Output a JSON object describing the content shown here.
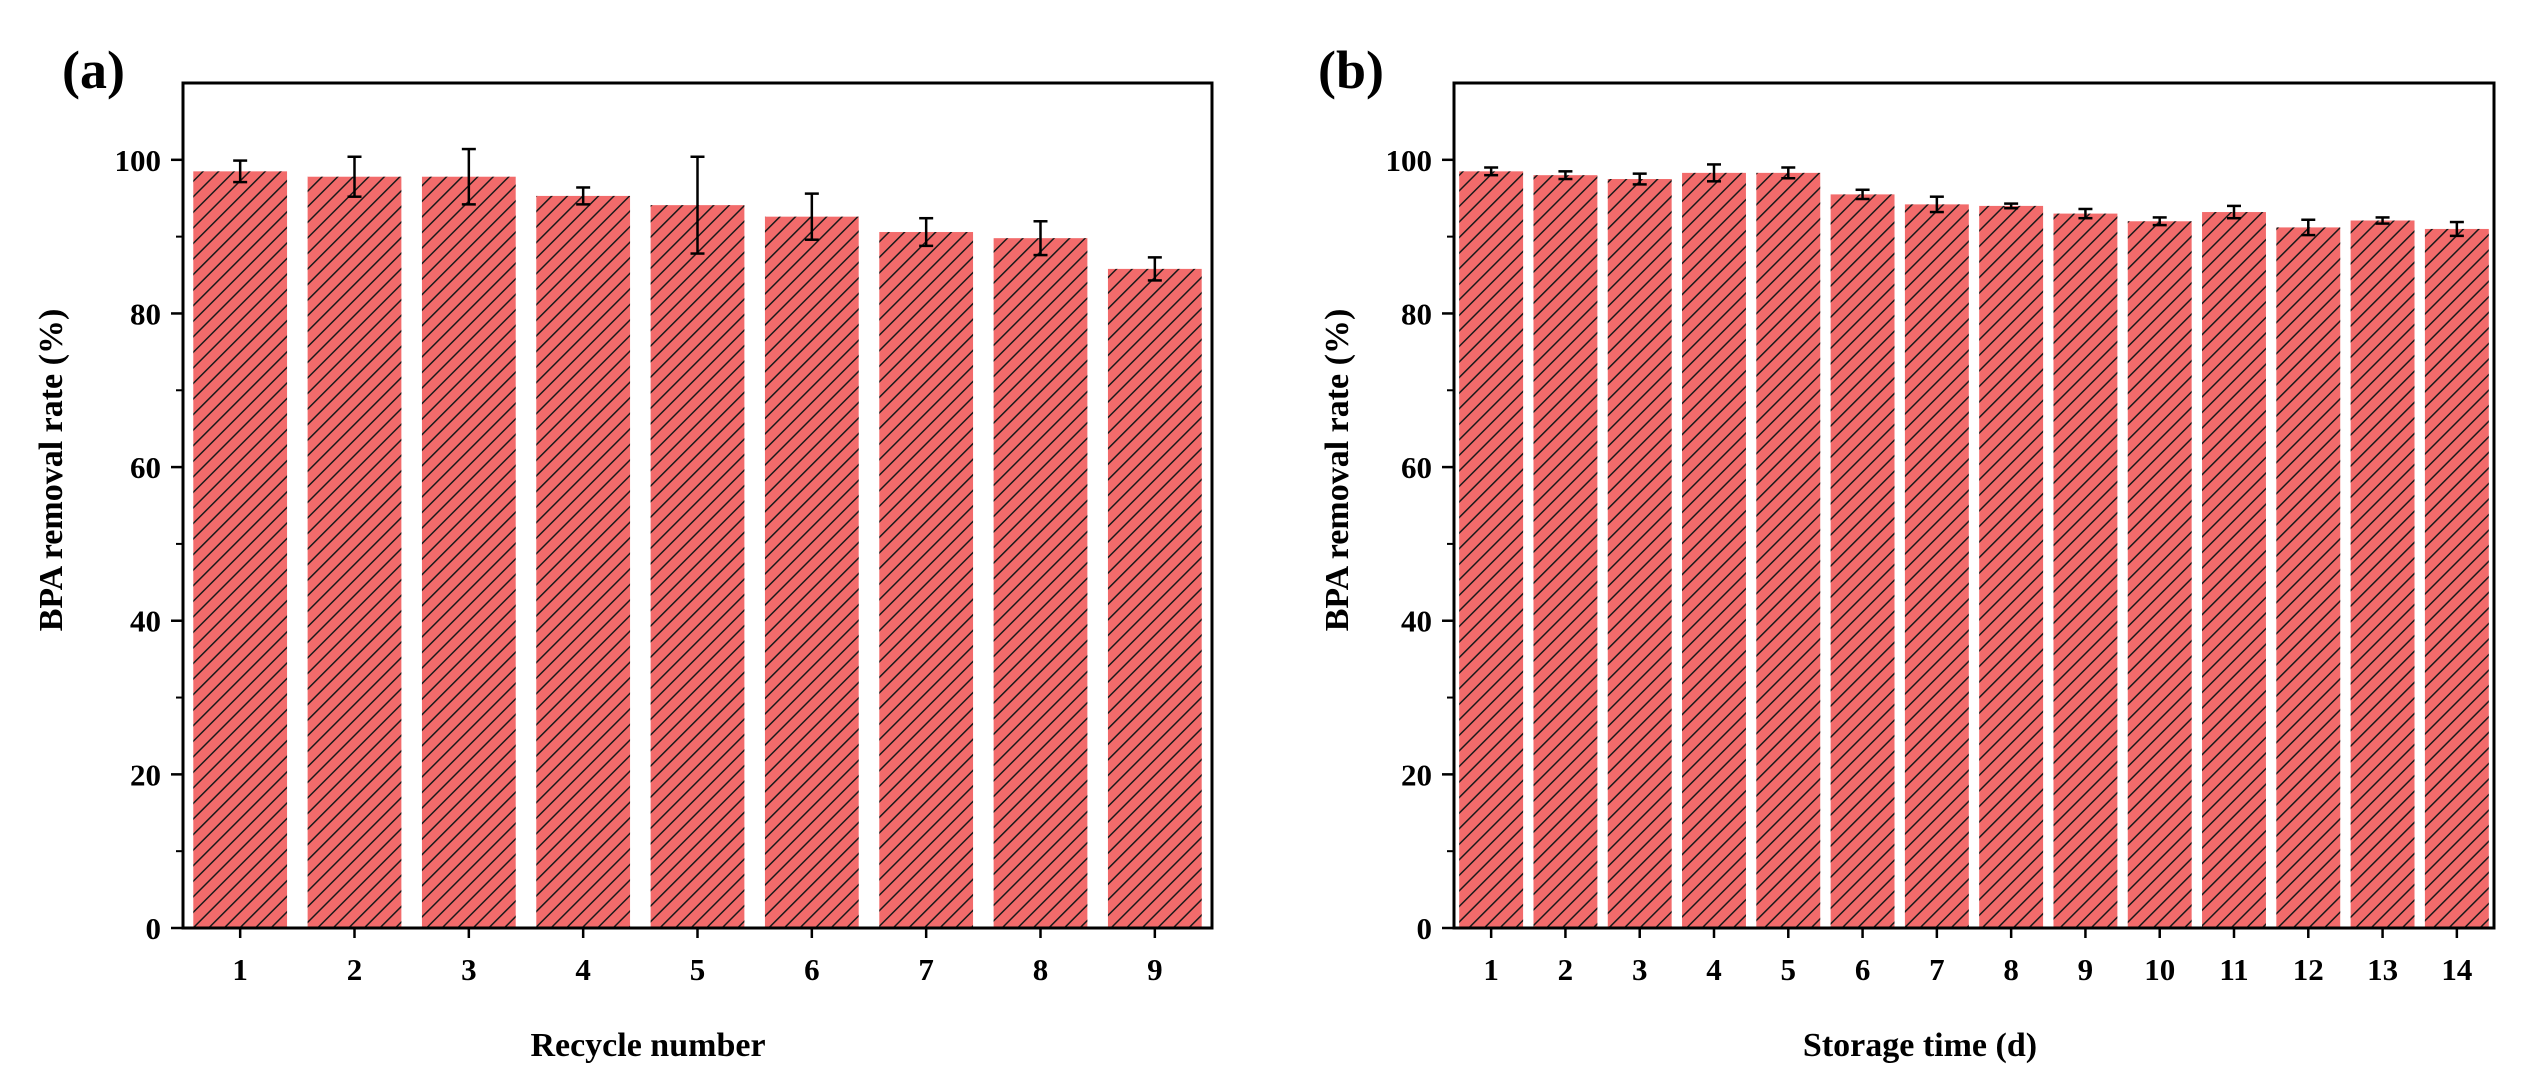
{
  "chart_data": [
    {
      "type": "bar",
      "panel_label": "(a)",
      "categories": [
        "1",
        "2",
        "3",
        "4",
        "5",
        "6",
        "7",
        "8",
        "9"
      ],
      "values": [
        98.5,
        97.8,
        97.8,
        95.3,
        94.1,
        92.6,
        90.6,
        89.8,
        85.8
      ],
      "errors": [
        1.4,
        2.6,
        3.6,
        1.1,
        6.3,
        3.0,
        1.8,
        2.2,
        1.5
      ],
      "xlabel": "Recycle number",
      "ylabel": "BPA removal rate (%)",
      "ylim": [
        0,
        110
      ],
      "yticks": [
        "0",
        "20",
        "40",
        "60",
        "80",
        "100"
      ],
      "bar_fill": "#f26b6b",
      "hatch_color": "#1a1a1a",
      "grid": false
    },
    {
      "type": "bar",
      "panel_label": "(b)",
      "categories": [
        "1",
        "2",
        "3",
        "4",
        "5",
        "6",
        "7",
        "8",
        "9",
        "10",
        "11",
        "12",
        "13",
        "14"
      ],
      "values": [
        98.5,
        98.0,
        97.5,
        98.3,
        98.3,
        95.5,
        94.2,
        94.0,
        93.0,
        92.0,
        93.2,
        91.2,
        92.1,
        91.0
      ],
      "errors": [
        0.5,
        0.5,
        0.7,
        1.1,
        0.7,
        0.6,
        1.0,
        0.3,
        0.6,
        0.5,
        0.8,
        1.0,
        0.4,
        0.9
      ],
      "xlabel": "Storage time (d)",
      "ylabel": "BPA removal rate (%)",
      "ylim": [
        0,
        110
      ],
      "yticks": [
        "0",
        "20",
        "40",
        "60",
        "80",
        "100"
      ],
      "bar_fill": "#f26b6b",
      "hatch_color": "#1a1a1a",
      "grid": false
    }
  ]
}
